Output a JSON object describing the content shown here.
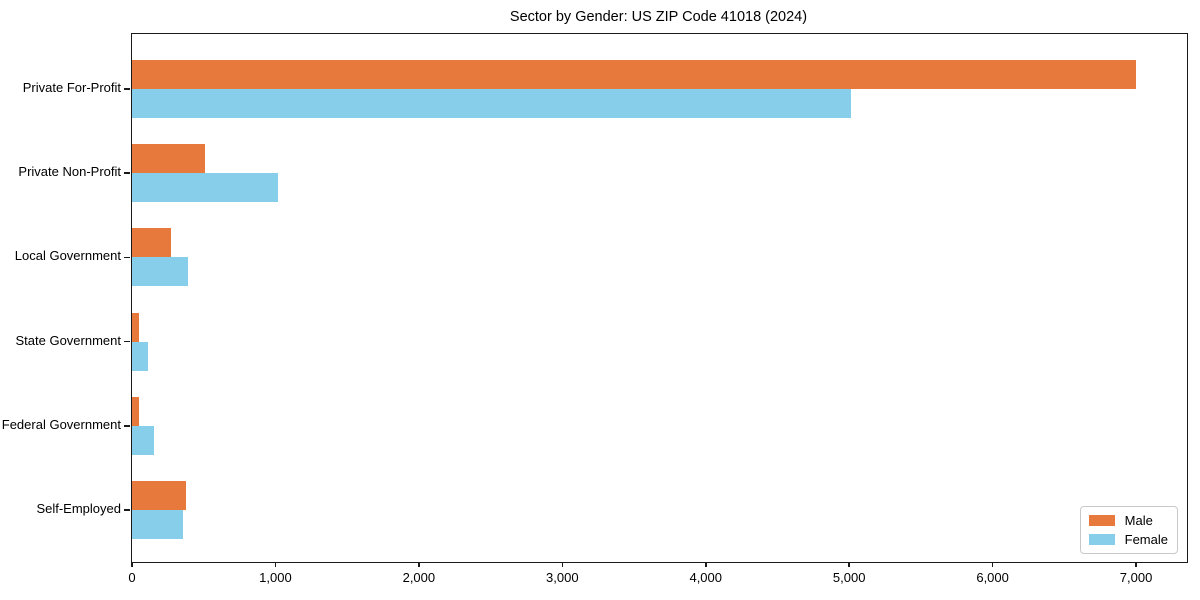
{
  "chart_data": {
    "type": "bar",
    "orientation": "horizontal",
    "title": "Sector by Gender: US ZIP Code 41018 (2024)",
    "categories": [
      "Private For-Profit",
      "Private Non-Profit",
      "Local Government",
      "State Government",
      "Federal Government",
      "Self-Employed"
    ],
    "series": [
      {
        "name": "Male",
        "color": "#e7793c",
        "values": [
          7000,
          510,
          270,
          45,
          50,
          375
        ]
      },
      {
        "name": "Female",
        "color": "#87ceeb",
        "values": [
          5010,
          1020,
          390,
          110,
          155,
          355
        ]
      }
    ],
    "xlabel": "",
    "ylabel": "",
    "xlim": [
      0,
      7355
    ],
    "x_ticks": [
      0,
      1000,
      2000,
      3000,
      4000,
      5000,
      6000,
      7000
    ],
    "x_tick_labels": [
      "0",
      "1,000",
      "2,000",
      "3,000",
      "4,000",
      "5,000",
      "6,000",
      "7,000"
    ],
    "grid": false,
    "legend_position": "lower right",
    "legend_labels": [
      "Male",
      "Female"
    ]
  }
}
